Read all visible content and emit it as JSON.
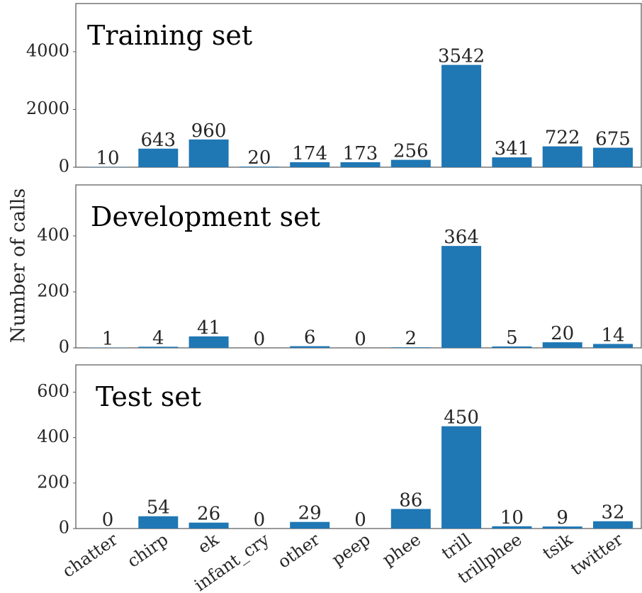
{
  "ylabel": "Number of calls",
  "categories": [
    "chatter",
    "chirp",
    "ek",
    "infant_cry",
    "other",
    "peep",
    "phee",
    "trill",
    "trillphee",
    "tsik",
    "twitter"
  ],
  "chart_data": [
    {
      "type": "bar",
      "title": "Training set",
      "color": "#1f77b4",
      "values": [
        10,
        643,
        960,
        20,
        174,
        173,
        256,
        3542,
        341,
        722,
        675
      ],
      "ylim": [
        0,
        5667
      ],
      "yticks": [
        0,
        2000,
        4000
      ]
    },
    {
      "type": "bar",
      "title": "Development set",
      "color": "#1f77b4",
      "values": [
        1,
        4,
        41,
        0,
        6,
        0,
        2,
        364,
        5,
        20,
        14
      ],
      "ylim": [
        0,
        582
      ],
      "yticks": [
        0,
        200,
        400
      ]
    },
    {
      "type": "bar",
      "title": "Test set",
      "color": "#1f77b4",
      "values": [
        0,
        54,
        26,
        0,
        29,
        0,
        86,
        450,
        10,
        9,
        32
      ],
      "ylim": [
        0,
        720
      ],
      "yticks": [
        0,
        200,
        400,
        600
      ]
    }
  ]
}
